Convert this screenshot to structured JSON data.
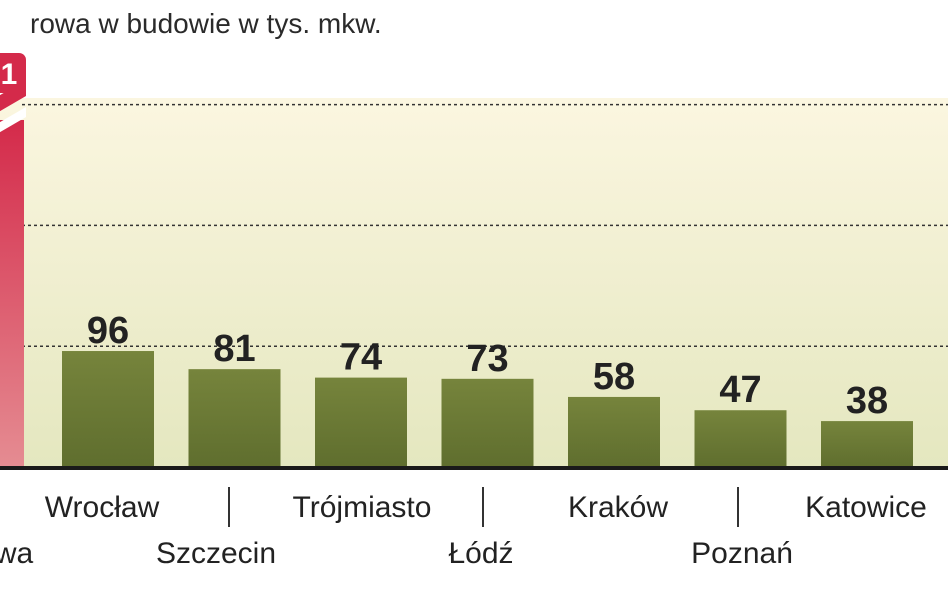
{
  "chart_data": {
    "type": "bar",
    "title": "rowa w budowie w tys. mkw.",
    "categories": [
      "wa",
      "Wrocław",
      "Szczecin",
      "Trójmiasto",
      "Łódź",
      "Kraków",
      "Poznań",
      "Katowice"
    ],
    "values": [
      null,
      96,
      81,
      74,
      73,
      58,
      47,
      38
    ],
    "truncated_bar_label": "1",
    "ylim": [
      0,
      400
    ],
    "gridlines": [
      100,
      200,
      300,
      400
    ],
    "grid": true,
    "colors": {
      "bar": "#5f6e2e",
      "bar_highlight": "#d42a4a",
      "plot_bg_top": "#fbf6e0",
      "plot_bg_bottom": "#e4e7bf",
      "gridline": "#333333",
      "text": "#222222"
    }
  }
}
